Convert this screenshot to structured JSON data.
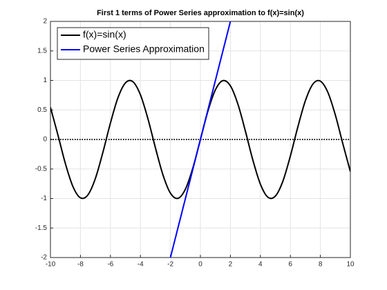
{
  "chart_data": {
    "type": "line",
    "title": "First 1 terms of Power Series approximation to f(x)=sin(x)",
    "xlim": [
      -10,
      10
    ],
    "ylim": [
      -2,
      2
    ],
    "xticks": [
      -10,
      -8,
      -6,
      -4,
      -2,
      0,
      2,
      4,
      6,
      8,
      10
    ],
    "yticks": [
      -2,
      -1.5,
      -1,
      -0.5,
      0,
      0.5,
      1,
      1.5,
      2
    ],
    "grid": true,
    "legend": "upper-left",
    "reference_line": {
      "y": 0,
      "color": "#000000",
      "style": "dotted"
    },
    "series": [
      {
        "name": "f(x)=sin(x)",
        "color": "#000000",
        "x": [
          -10,
          -9.5,
          -9,
          -8.5,
          -8,
          -7.5,
          -7,
          -6.5,
          -6,
          -5.5,
          -5,
          -4.5,
          -4,
          -3.5,
          -3,
          -2.5,
          -2,
          -1.5,
          -1,
          -0.5,
          0,
          0.5,
          1,
          1.5,
          2,
          2.5,
          3,
          3.5,
          4,
          4.5,
          5,
          5.5,
          6,
          6.5,
          7,
          7.5,
          8,
          8.5,
          9,
          9.5,
          10
        ],
        "values": [
          0.544,
          0.075,
          -0.412,
          -0.798,
          -0.989,
          -0.938,
          -0.657,
          -0.215,
          0.279,
          0.706,
          0.959,
          0.978,
          0.757,
          0.351,
          -0.141,
          -0.598,
          -0.909,
          -0.997,
          -0.841,
          -0.479,
          0,
          0.479,
          0.841,
          0.997,
          0.909,
          0.598,
          0.141,
          -0.351,
          -0.757,
          -0.978,
          -0.959,
          -0.706,
          -0.279,
          0.215,
          0.657,
          0.938,
          0.989,
          0.798,
          0.412,
          -0.075,
          -0.544
        ]
      },
      {
        "name": "Power Series Approximation",
        "color": "#0000ff",
        "x": [
          -2,
          2
        ],
        "values": [
          -2,
          2
        ]
      }
    ]
  }
}
